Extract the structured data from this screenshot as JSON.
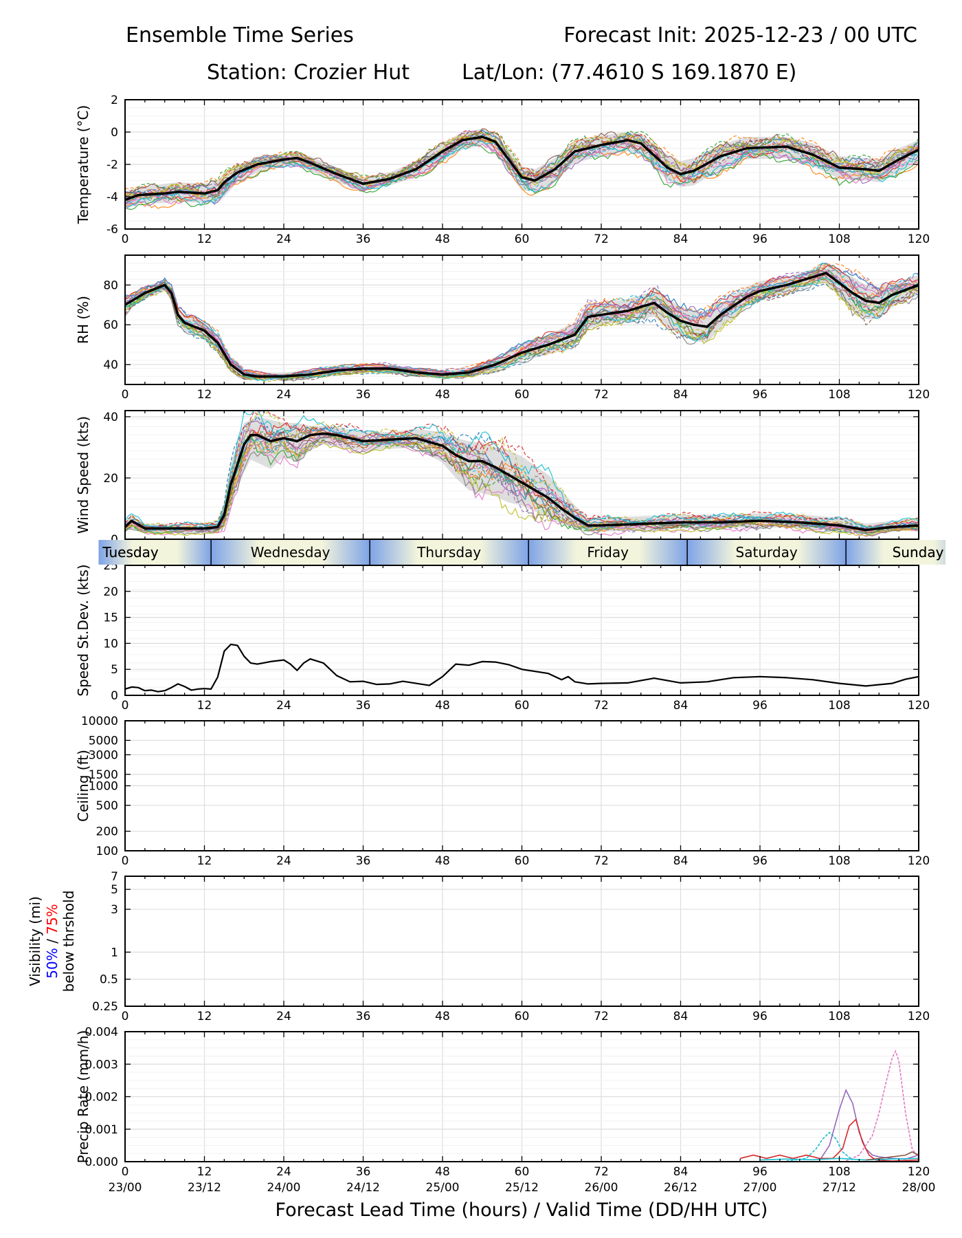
{
  "header": {
    "left_title": "Ensemble Time Series",
    "right_title": "Forecast Init: 2025-12-23 / 00 UTC",
    "station": "Station: Crozier Hut",
    "latlon": "Lat/Lon: (77.4610 S 169.1870 E)"
  },
  "xaxis": {
    "ticks": [
      0,
      12,
      24,
      36,
      48,
      60,
      72,
      84,
      96,
      108,
      120
    ],
    "valid_times": [
      "23/00",
      "23/12",
      "24/00",
      "24/12",
      "25/00",
      "25/12",
      "26/00",
      "26/12",
      "27/00",
      "27/12",
      "28/00"
    ],
    "label": "Forecast Lead Time (hours) / Valid Time (DD/HH UTC)"
  },
  "day_bar": {
    "days": [
      "Tuesday",
      "Wednesday",
      "Thursday",
      "Friday",
      "Saturday",
      "Sunday"
    ],
    "boundaries": [
      13,
      37,
      61,
      85,
      109
    ]
  },
  "colors": {
    "mean_line": "#000000",
    "spread_fill": "#cccccc",
    "day_light": "#f2f4dc",
    "day_blue": "#7ea3e6",
    "vis_50": "#0000ff",
    "vis_75": "#ff0000",
    "members": [
      "#1f77b4",
      "#ff7f0e",
      "#2ca02c",
      "#d62728",
      "#9467bd",
      "#8c564b",
      "#e377c2",
      "#7f7f7f",
      "#bcbd22",
      "#17becf"
    ]
  },
  "chart_data": [
    {
      "id": "temperature",
      "type": "line",
      "ylabel": "Temperature (°C)",
      "ylim": [
        -6,
        2
      ],
      "yticks": [
        -6,
        -4,
        -2,
        0,
        2
      ],
      "x": [
        0,
        2,
        6,
        8,
        12,
        14,
        15,
        17,
        20,
        24,
        26,
        28,
        32,
        36,
        40,
        44,
        48,
        51,
        54,
        56,
        60,
        62,
        65,
        68,
        72,
        76,
        78,
        82,
        84,
        86,
        90,
        94,
        100,
        104,
        108,
        112,
        114,
        117,
        120
      ],
      "ensemble_mean": [
        -4.2,
        -3.9,
        -3.8,
        -3.7,
        -3.8,
        -3.6,
        -3.1,
        -2.5,
        -2.0,
        -1.7,
        -1.6,
        -1.9,
        -2.6,
        -3.2,
        -2.9,
        -2.3,
        -1.2,
        -0.5,
        -0.3,
        -0.6,
        -2.8,
        -3.0,
        -2.3,
        -1.2,
        -0.8,
        -0.5,
        -0.7,
        -2.2,
        -2.6,
        -2.4,
        -1.5,
        -1.0,
        -0.9,
        -1.4,
        -2.2,
        -2.3,
        -2.4,
        -1.7,
        -1.1
      ],
      "spread_lower": [
        -4.8,
        -4.4,
        -4.4,
        -4.3,
        -4.4,
        -4.4,
        -4.0,
        -3.1,
        -2.5,
        -2.1,
        -2.1,
        -2.4,
        -3.1,
        -3.6,
        -3.3,
        -2.8,
        -1.8,
        -1.1,
        -0.8,
        -1.3,
        -3.6,
        -3.7,
        -3.1,
        -1.9,
        -1.5,
        -1.2,
        -1.4,
        -3.0,
        -3.4,
        -3.3,
        -2.3,
        -1.7,
        -1.6,
        -2.1,
        -2.9,
        -3.0,
        -3.1,
        -2.5,
        -1.8
      ],
      "spread_upper": [
        -3.7,
        -3.4,
        -3.2,
        -3.1,
        -3.2,
        -3.0,
        -2.5,
        -2.0,
        -1.6,
        -1.3,
        -1.2,
        -1.5,
        -2.2,
        -2.8,
        -2.5,
        -1.8,
        -0.7,
        0.0,
        0.2,
        -0.1,
        -2.1,
        -2.3,
        -1.6,
        -0.5,
        -0.2,
        0.0,
        -0.1,
        -1.4,
        -1.8,
        -1.6,
        -0.8,
        -0.3,
        -0.3,
        -0.7,
        -1.5,
        -1.6,
        -1.7,
        -1.0,
        -0.5
      ]
    },
    {
      "id": "relative-humidity",
      "type": "line",
      "ylabel": "RH (%)",
      "ylim": [
        30,
        95
      ],
      "yticks": [
        40,
        60,
        80
      ],
      "x": [
        0,
        1,
        3,
        6,
        7,
        8,
        9,
        12,
        14,
        16,
        18,
        20,
        24,
        28,
        32,
        36,
        40,
        44,
        48,
        52,
        56,
        60,
        64,
        68,
        70,
        72,
        76,
        80,
        82,
        84,
        86,
        88,
        90,
        94,
        96,
        100,
        104,
        106,
        108,
        110,
        112,
        114,
        116,
        120
      ],
      "ensemble_mean": [
        70,
        72,
        76,
        80,
        76,
        65,
        61,
        57,
        51,
        40,
        35,
        34,
        34,
        35,
        37,
        38,
        38,
        36,
        35,
        36,
        40,
        46,
        50,
        55,
        64,
        65,
        67,
        71,
        66,
        62,
        60,
        59,
        65,
        74,
        77,
        80,
        84,
        86,
        81,
        76,
        72,
        71,
        75,
        80
      ],
      "spread_lower": [
        66,
        69,
        73,
        77,
        72,
        61,
        57,
        53,
        47,
        37,
        33,
        32,
        32,
        33,
        35,
        36,
        36,
        34,
        33,
        34,
        37,
        42,
        45,
        50,
        58,
        60,
        62,
        64,
        59,
        55,
        52,
        51,
        58,
        69,
        72,
        76,
        80,
        81,
        74,
        67,
        63,
        63,
        69,
        75
      ],
      "spread_upper": [
        74,
        75,
        79,
        83,
        80,
        69,
        65,
        61,
        55,
        43,
        37,
        36,
        36,
        37,
        39,
        40,
        40,
        38,
        37,
        38,
        43,
        50,
        55,
        61,
        70,
        71,
        73,
        77,
        73,
        69,
        67,
        66,
        71,
        79,
        82,
        84,
        88,
        90,
        87,
        84,
        80,
        79,
        81,
        85
      ]
    },
    {
      "id": "wind-speed",
      "type": "line",
      "ylabel": "Wind Speed (kts)",
      "ylim": [
        0,
        42
      ],
      "yticks": [
        0,
        20,
        40
      ],
      "x": [
        0,
        1,
        3,
        6,
        9,
        12,
        14,
        15,
        16,
        18,
        19,
        20,
        22,
        24,
        26,
        28,
        30,
        32,
        36,
        40,
        44,
        48,
        50,
        52,
        54,
        56,
        58,
        60,
        62,
        64,
        66,
        68,
        70,
        72,
        78,
        84,
        90,
        96,
        102,
        108,
        112,
        116,
        120
      ],
      "ensemble_mean": [
        4,
        6,
        3.5,
        3.5,
        3.5,
        3.5,
        4,
        8,
        18,
        31,
        34,
        34,
        32,
        33,
        32,
        34,
        34.5,
        34,
        32,
        32.5,
        33,
        30.5,
        27.5,
        25.5,
        25.5,
        23.5,
        21,
        18.5,
        16,
        13.5,
        10,
        7,
        4.5,
        4.5,
        5,
        5.5,
        5.5,
        6,
        5.5,
        4.5,
        3,
        4,
        4.5
      ],
      "spread_lower": [
        2.5,
        3.5,
        2,
        2,
        2,
        2,
        2.5,
        4,
        11,
        22,
        26,
        25,
        23,
        27,
        25,
        29,
        31,
        30,
        29,
        29.5,
        30,
        25,
        20,
        16,
        15,
        14,
        12,
        11,
        9,
        7,
        5,
        3.5,
        2.5,
        2.5,
        3,
        3.5,
        3.5,
        4,
        3.5,
        3,
        2,
        2.5,
        3
      ],
      "spread_upper": [
        5.5,
        8,
        5,
        5,
        5,
        5,
        6,
        12,
        25,
        38,
        39,
        40,
        39,
        38,
        38,
        37,
        37,
        36.5,
        35,
        35,
        36,
        35,
        33,
        32,
        31.5,
        30,
        29,
        27,
        24,
        21,
        16,
        11,
        7,
        7,
        7.5,
        8,
        8,
        8.5,
        8,
        7,
        5,
        6,
        7
      ]
    },
    {
      "id": "speed-stdev",
      "type": "line",
      "ylabel": "Speed St.Dev. (kts)",
      "ylim": [
        0,
        25
      ],
      "yticks": [
        0,
        5,
        10,
        15,
        20,
        25
      ],
      "x": [
        0,
        1,
        2,
        3,
        4,
        5,
        6,
        7,
        8,
        9,
        10,
        11,
        12,
        13,
        14,
        15,
        16,
        17,
        18,
        19,
        20,
        22,
        24,
        25,
        26,
        27,
        28,
        30,
        32,
        34,
        36,
        38,
        40,
        42,
        44,
        46,
        48,
        50,
        52,
        54,
        56,
        58,
        60,
        62,
        64,
        66,
        67,
        68,
        70,
        72,
        76,
        80,
        84,
        88,
        92,
        96,
        100,
        104,
        108,
        112,
        116,
        118,
        120
      ],
      "values": [
        1.2,
        1.6,
        1.5,
        0.9,
        1.0,
        0.7,
        0.9,
        1.5,
        2.2,
        1.7,
        1.0,
        1.2,
        1.3,
        1.2,
        3.5,
        8.5,
        9.8,
        9.6,
        7.5,
        6.2,
        6.0,
        6.5,
        6.8,
        6.0,
        4.8,
        6.2,
        7.0,
        6.2,
        3.8,
        2.6,
        2.7,
        2.1,
        2.2,
        2.7,
        2.3,
        1.9,
        3.6,
        6.0,
        5.8,
        6.5,
        6.4,
        5.9,
        5.0,
        4.6,
        4.2,
        3.0,
        3.6,
        2.6,
        2.2,
        2.3,
        2.4,
        3.3,
        2.4,
        2.6,
        3.4,
        3.6,
        3.4,
        3.0,
        2.3,
        1.8,
        2.3,
        3.1,
        3.6
      ]
    },
    {
      "id": "ceiling",
      "type": "line",
      "ylabel": "Ceiling (ft)",
      "yscale": "log",
      "ylim": [
        100,
        10000
      ],
      "yticks": [
        100,
        200,
        500,
        1000,
        1500,
        3000,
        5000,
        10000
      ],
      "series": []
    },
    {
      "id": "visibility",
      "type": "line",
      "ylabel_main": "Visibility (mi)",
      "ylabel_50": "50%",
      "ylabel_sep": " / ",
      "ylabel_75": "75%",
      "ylabel_sub": "below thrshold",
      "yscale": "log",
      "ylim": [
        0.25,
        7
      ],
      "yticks": [
        0.25,
        0.5,
        1,
        3,
        5,
        7
      ],
      "series": []
    },
    {
      "id": "precip-rate",
      "type": "line",
      "ylabel": "Precip Rate (mm/h)",
      "ylim": [
        0,
        0.004
      ],
      "yticks": [
        0.0,
        0.001,
        0.002,
        0.003,
        0.004
      ],
      "ytick_labels": [
        "0.000",
        "0.001",
        "0.002",
        "0.003",
        "0.004"
      ],
      "series": [
        {
          "name": "member-cyan",
          "color": "#17becf",
          "dashed": true,
          "x": [
            100,
            103,
            104.5,
            105.5,
            106.5,
            107.5,
            108.5,
            110
          ],
          "values": [
            2e-05,
            0.0001,
            0.0004,
            0.0007,
            0.0009,
            0.0007,
            0.0003,
            5e-05
          ]
        },
        {
          "name": "member-purple",
          "color": "#9467bd",
          "dashed": false,
          "x": [
            105,
            106.5,
            108,
            109,
            110,
            111,
            112,
            113,
            114,
            116,
            118,
            120
          ],
          "values": [
            3e-05,
            0.0005,
            0.0016,
            0.0022,
            0.0018,
            0.0009,
            0.0004,
            0.0002,
            0.00015,
            0.0001,
            8e-05,
            0.0002
          ]
        },
        {
          "name": "member-red",
          "color": "#d62728",
          "dashed": false,
          "x": [
            93,
            95,
            97,
            99,
            101,
            103,
            105,
            107,
            108.5,
            109.5,
            110.5,
            111.5,
            112.5,
            113.5,
            116,
            120
          ],
          "values": [
            0.0001,
            0.0002,
            0.0001,
            0.0002,
            0.0001,
            0.0002,
            0.0001,
            0.0001,
            0.0004,
            0.0011,
            0.0013,
            0.0006,
            0.0002,
            5e-05,
            2e-05,
            5e-05
          ]
        },
        {
          "name": "member-pink",
          "color": "#e377c2",
          "dashed": true,
          "x": [
            109,
            111,
            113,
            114,
            115,
            116,
            116.5,
            117,
            118,
            119,
            120
          ],
          "values": [
            2e-05,
            0.0002,
            0.0008,
            0.0015,
            0.0024,
            0.0032,
            0.0034,
            0.0031,
            0.0015,
            0.0004,
            0.0001
          ]
        },
        {
          "name": "member-teal",
          "color": "#17becf",
          "dashed": false,
          "x": [
            96,
            100,
            104,
            108,
            112,
            116,
            120
          ],
          "values": [
            5e-05,
            8e-05,
            6e-05,
            0.0001,
            5e-05,
            8e-05,
            0.0001
          ]
        },
        {
          "name": "member-brown",
          "color": "#8c564b",
          "dashed": false,
          "x": [
            112,
            114,
            116,
            118,
            119,
            120
          ],
          "values": [
            5e-05,
            0.0001,
            0.00015,
            0.0002,
            0.0003,
            0.0002
          ]
        }
      ]
    }
  ]
}
